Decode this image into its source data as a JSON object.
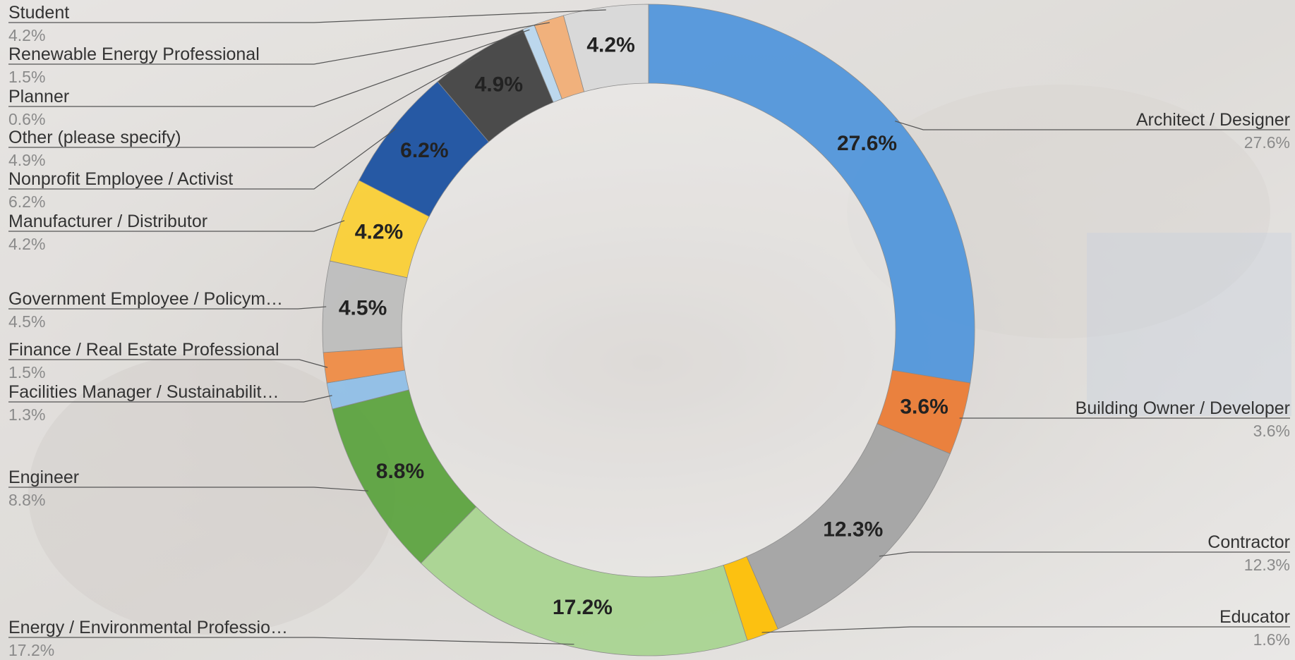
{
  "chart_data": {
    "type": "pie",
    "categories": [
      "Architect / Designer",
      "Building Owner / Developer",
      "Contractor",
      "Educator",
      "Energy / Environmental Professio…",
      "Engineer",
      "Facilities Manager / Sustainabilit…",
      "Finance / Real Estate Professional",
      "Government Employee / Policym…",
      "Manufacturer / Distributor",
      "Nonprofit Employee / Activist",
      "Other (please specify)",
      "Planner",
      "Renewable Energy Professional",
      "Student"
    ],
    "values": [
      27.6,
      3.6,
      12.3,
      1.6,
      17.2,
      8.8,
      1.3,
      1.5,
      4.5,
      4.2,
      6.2,
      4.9,
      0.6,
      1.5,
      4.2
    ],
    "value_labels": [
      "27.6%",
      "3.6%",
      "12.3%",
      "1.6%",
      "17.2%",
      "8.8%",
      "1.3%",
      "1.5%",
      "4.5%",
      "4.2%",
      "6.2%",
      "4.9%",
      "0.6%",
      "1.5%",
      "4.2%"
    ],
    "colors": [
      "#4f95dc",
      "#ec7a32",
      "#a3a3a3",
      "#ffbf00",
      "#a8d590",
      "#5aa33d",
      "#8fbfe8",
      "#f08a42",
      "#bdbdbd",
      "#fcd032",
      "#174ea0",
      "#3f3f3f",
      "#b9d7ef",
      "#f3ae74",
      "#d9d9d9"
    ]
  }
}
